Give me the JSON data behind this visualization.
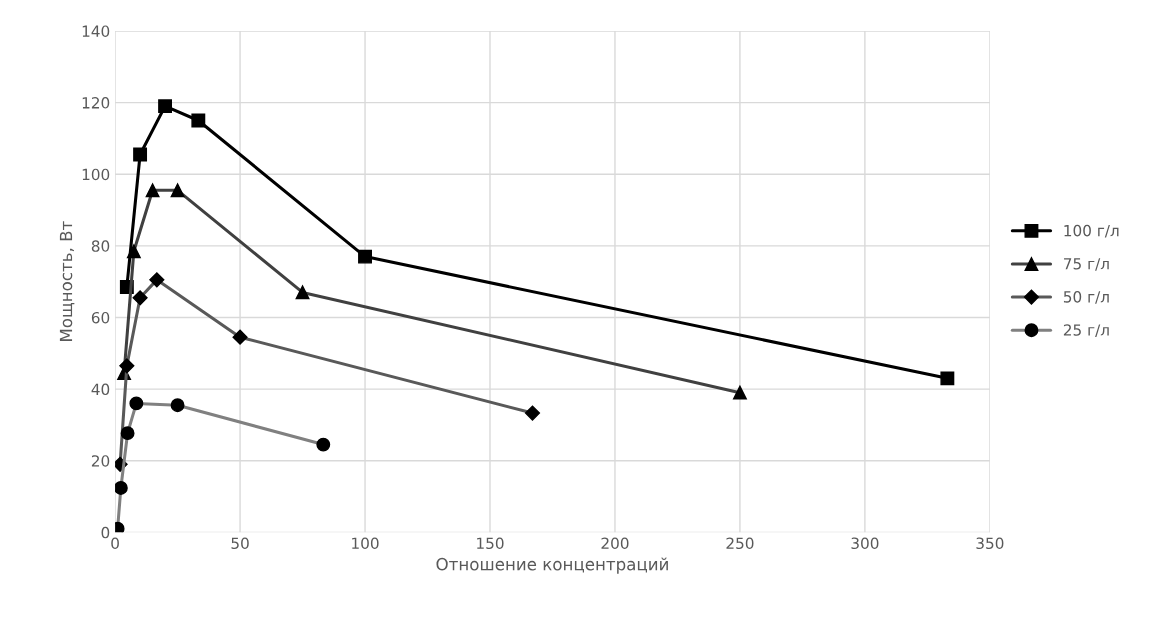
{
  "chart_data": {
    "type": "line",
    "xlabel": "Отношение концентраций",
    "ylabel": "Мощность, Вт",
    "xlim": [
      0,
      350
    ],
    "xticks": [
      0,
      50,
      100,
      150,
      200,
      250,
      300,
      350
    ],
    "ylim": [
      0,
      140
    ],
    "yticks": [
      0,
      20,
      40,
      60,
      80,
      100,
      120,
      140
    ],
    "grid": true,
    "legend": "right",
    "series": [
      {
        "name": "100 г/л",
        "color": "#000000",
        "marker": "square",
        "x": [
          4.7,
          10,
          20,
          33.3,
          100,
          333
        ],
        "values": [
          68.5,
          105.5,
          119,
          115,
          77,
          43
        ]
      },
      {
        "name": "75 г/л",
        "color": "#404040",
        "marker": "triangle",
        "x": [
          3.6,
          7.5,
          15,
          25,
          75,
          250
        ],
        "values": [
          44.5,
          78.5,
          95.5,
          95.5,
          67,
          39
        ]
      },
      {
        "name": "50 г/л",
        "color": "#595959",
        "marker": "diamond",
        "x": [
          2,
          4.7,
          10,
          16.7,
          50,
          167
        ],
        "values": [
          19,
          46.5,
          65.5,
          70.5,
          54.5,
          33.3
        ]
      },
      {
        "name": "25 г/л",
        "color": "#808080",
        "marker": "circle",
        "x": [
          1,
          2.3,
          5,
          8.5,
          25,
          83.3
        ],
        "values": [
          1,
          12.4,
          27.7,
          36,
          35.5,
          24.5
        ]
      }
    ]
  }
}
